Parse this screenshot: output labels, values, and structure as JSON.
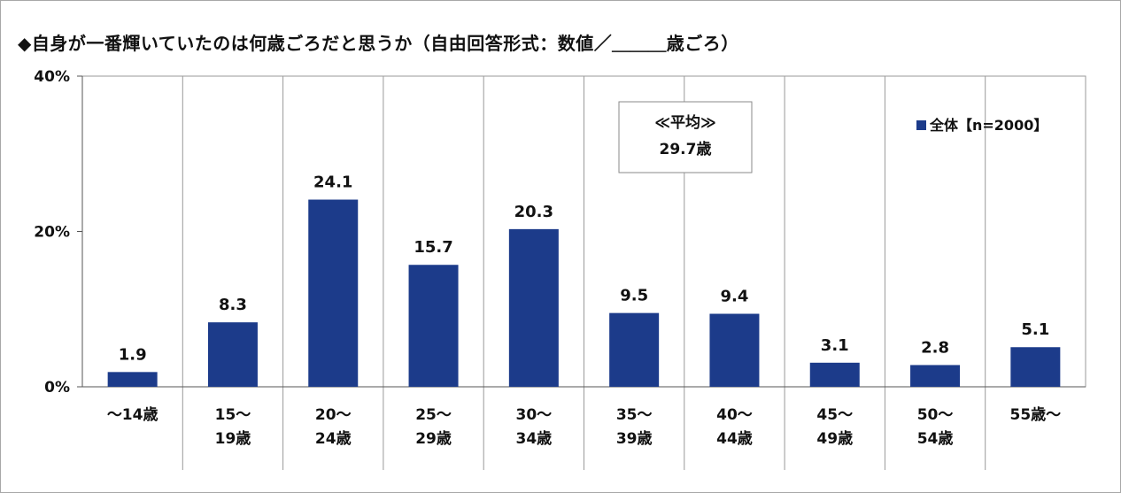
{
  "chart_data": {
    "type": "bar",
    "title": "◆自身が一番輝いていたのは何歳ごろだと思うか（自由回答形式：数値／＿＿＿歳ごろ）",
    "categories": [
      [
        "～14歳"
      ],
      [
        "15～",
        "19歳"
      ],
      [
        "20～",
        "24歳"
      ],
      [
        "25～",
        "29歳"
      ],
      [
        "30～",
        "34歳"
      ],
      [
        "35～",
        "39歳"
      ],
      [
        "40～",
        "44歳"
      ],
      [
        "45～",
        "49歳"
      ],
      [
        "50～",
        "54歳"
      ],
      [
        "55歳～"
      ]
    ],
    "series": [
      {
        "name": "全体【n=2000】",
        "values": [
          1.9,
          8.3,
          24.1,
          15.7,
          20.3,
          9.5,
          9.4,
          3.1,
          2.8,
          5.1
        ],
        "color": "#1c3b8a"
      }
    ],
    "y_ticks": [
      "0%",
      "20%",
      "40%"
    ],
    "y_tick_values": [
      0,
      20,
      40
    ],
    "ylim": [
      0,
      40
    ],
    "xlabel": "",
    "ylabel": "",
    "grid": "vertical category separators",
    "legend_position": "top-right",
    "annotation": [
      "≪平均≫",
      "29.7歳"
    ]
  }
}
